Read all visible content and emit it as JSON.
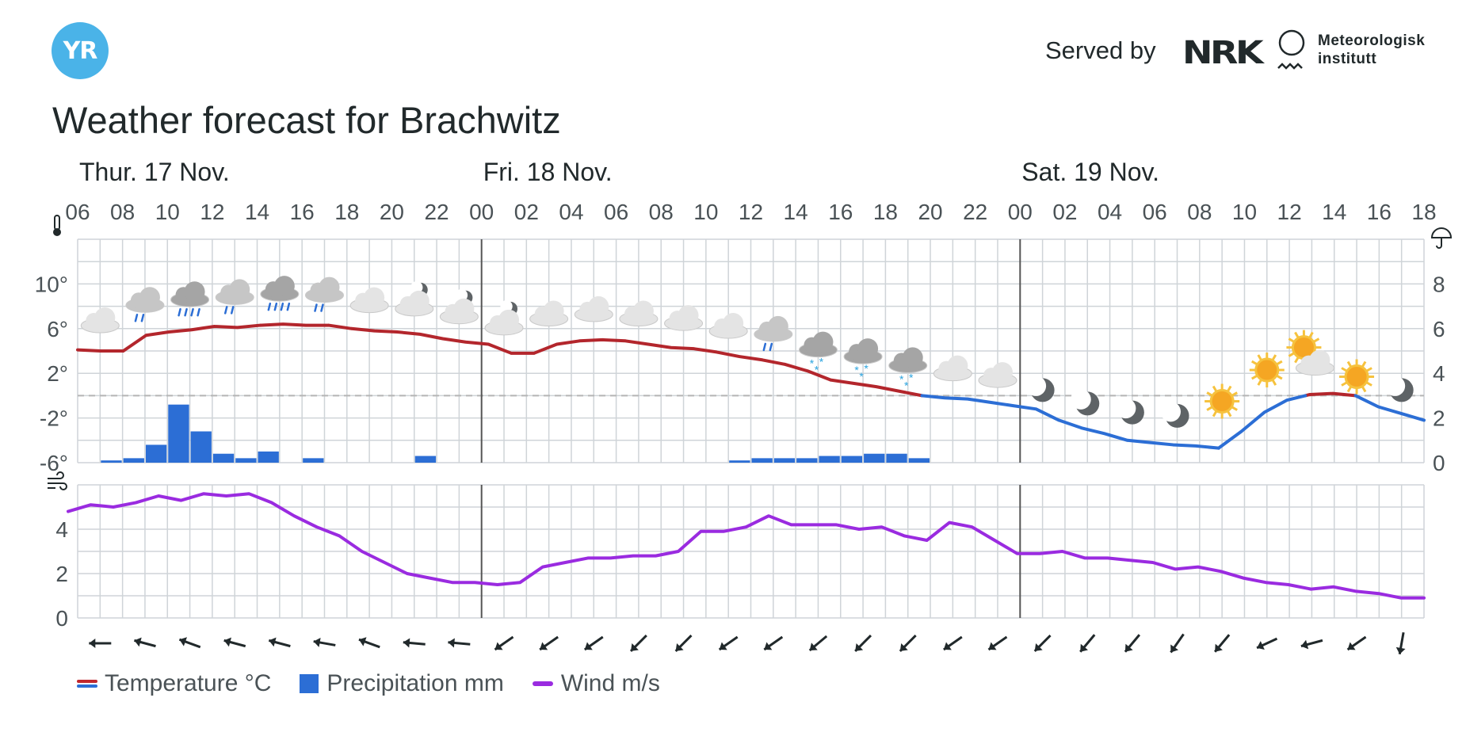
{
  "header": {
    "logo_text": "YR",
    "served_by": "Served by",
    "nrk_logo_text": "NRK",
    "met_text": "Meteorologisk\ninstitutt",
    "title": "Weather forecast for Brachwitz"
  },
  "colors": {
    "temp_warm": "#b3262c",
    "temp_cold": "#2c6ed5",
    "precip": "#2c6ed5",
    "wind": "#9a2be0",
    "grid": "#cfd4d8",
    "day_line": "#555555"
  },
  "legend": {
    "temperature": "Temperature °C",
    "precipitation": "Precipitation mm",
    "wind": "Wind m/s"
  },
  "chart_data": {
    "type": "line",
    "days": [
      {
        "label": "Thur. 17 Nov.",
        "start_hour_index": 0
      },
      {
        "label": "Fri. 18 Nov.",
        "start_hour_index": 18
      },
      {
        "label": "Sat. 19 Nov.",
        "start_hour_index": 42
      }
    ],
    "hour_labels": [
      "06",
      "08",
      "10",
      "12",
      "14",
      "16",
      "18",
      "20",
      "22",
      "00",
      "02",
      "04",
      "06",
      "08",
      "10",
      "12",
      "14",
      "16",
      "18",
      "20",
      "22",
      "00",
      "02",
      "04",
      "06",
      "08",
      "10",
      "12",
      "14",
      "16",
      "18"
    ],
    "temperature_axis": {
      "ticks": [
        "10°",
        "6°",
        "2°",
        "-2°",
        "-6°"
      ],
      "values": [
        10,
        6,
        2,
        -2,
        -6
      ],
      "ylim": [
        -6,
        14
      ],
      "icon": "thermometer-icon"
    },
    "precipitation_axis": {
      "ticks": [
        "8",
        "6",
        "4",
        "2",
        "0"
      ],
      "values": [
        8,
        6,
        4,
        2,
        0
      ],
      "ylim": [
        0,
        10
      ],
      "icon": "umbrella-icon"
    },
    "wind_axis": {
      "ticks": [
        "4",
        "2",
        "0"
      ],
      "values": [
        4,
        2,
        0
      ],
      "ylim": [
        0,
        6
      ],
      "icon": "wind-icon"
    },
    "temperature": [
      4.1,
      4.0,
      4.0,
      5.4,
      5.7,
      5.9,
      6.2,
      6.1,
      6.3,
      6.4,
      6.3,
      6.3,
      6.0,
      5.8,
      5.7,
      5.5,
      5.1,
      4.8,
      4.6,
      3.8,
      3.8,
      4.6,
      4.9,
      5.0,
      4.9,
      4.6,
      4.3,
      4.2,
      3.9,
      3.5,
      3.2,
      2.8,
      2.2,
      1.4,
      1.1,
      0.8,
      0.4,
      0.0,
      -0.2,
      -0.3,
      -0.6,
      -0.9,
      -1.2,
      -2.2,
      -2.9,
      -3.4,
      -4.0,
      -4.2,
      -4.4,
      -4.5,
      -4.7,
      -3.2,
      -1.5,
      -0.4,
      0.1,
      0.2,
      0.0,
      -1.0,
      -1.6,
      -2.2
    ],
    "temperature_step": "half-hour-index",
    "precipitation": [
      0,
      0.1,
      0.2,
      0.8,
      2.6,
      1.4,
      0.4,
      0.2,
      0.5,
      0,
      0.2,
      0,
      0,
      0,
      0,
      0.3,
      0,
      0,
      0,
      0,
      0,
      0,
      0,
      0,
      0,
      0,
      0,
      0,
      0,
      0.1,
      0.2,
      0.2,
      0.2,
      0.3,
      0.3,
      0.4,
      0.4,
      0.2,
      0,
      0,
      0,
      0,
      0,
      0,
      0,
      0,
      0,
      0,
      0,
      0,
      0,
      0,
      0,
      0,
      0,
      0,
      0,
      0,
      0,
      0,
      0
    ],
    "wind": [
      4.8,
      5.1,
      5.0,
      5.2,
      5.5,
      5.3,
      5.6,
      5.5,
      5.6,
      5.2,
      4.6,
      4.1,
      3.7,
      3.0,
      2.5,
      2.0,
      1.8,
      1.6,
      1.6,
      1.5,
      1.6,
      2.3,
      2.5,
      2.7,
      2.7,
      2.8,
      2.8,
      3.0,
      3.9,
      3.9,
      4.1,
      4.6,
      4.2,
      4.2,
      4.2,
      4.0,
      4.1,
      3.7,
      3.5,
      4.3,
      4.1,
      3.5,
      2.9,
      2.9,
      3.0,
      2.7,
      2.7,
      2.6,
      2.5,
      2.2,
      2.3,
      2.1,
      1.8,
      1.6,
      1.5,
      1.3,
      1.4,
      1.2,
      1.1,
      0.9,
      0.9
    ],
    "weather_symbols": [
      "cloudy",
      "rain-light",
      "rain",
      "rain-light",
      "rain",
      "rain-light",
      "cloudy",
      "partly-cloudy-night",
      "partly-cloudy-night",
      "partly-cloudy-night",
      "cloudy",
      "cloudy",
      "cloudy",
      "cloudy",
      "cloudy",
      "rain-light",
      "sleet",
      "sleet",
      "sleet",
      "cloudy",
      "cloudy",
      "moon",
      "moon",
      "moon",
      "moon",
      "sun",
      "sun",
      "partly-cloudy-day",
      "sun",
      "moon"
    ],
    "wind_directions_deg": [
      90,
      105,
      110,
      105,
      105,
      100,
      110,
      95,
      95,
      55,
      55,
      55,
      45,
      45,
      55,
      55,
      50,
      45,
      45,
      55,
      55,
      45,
      40,
      40,
      35,
      40,
      65,
      75,
      55,
      10
    ]
  }
}
